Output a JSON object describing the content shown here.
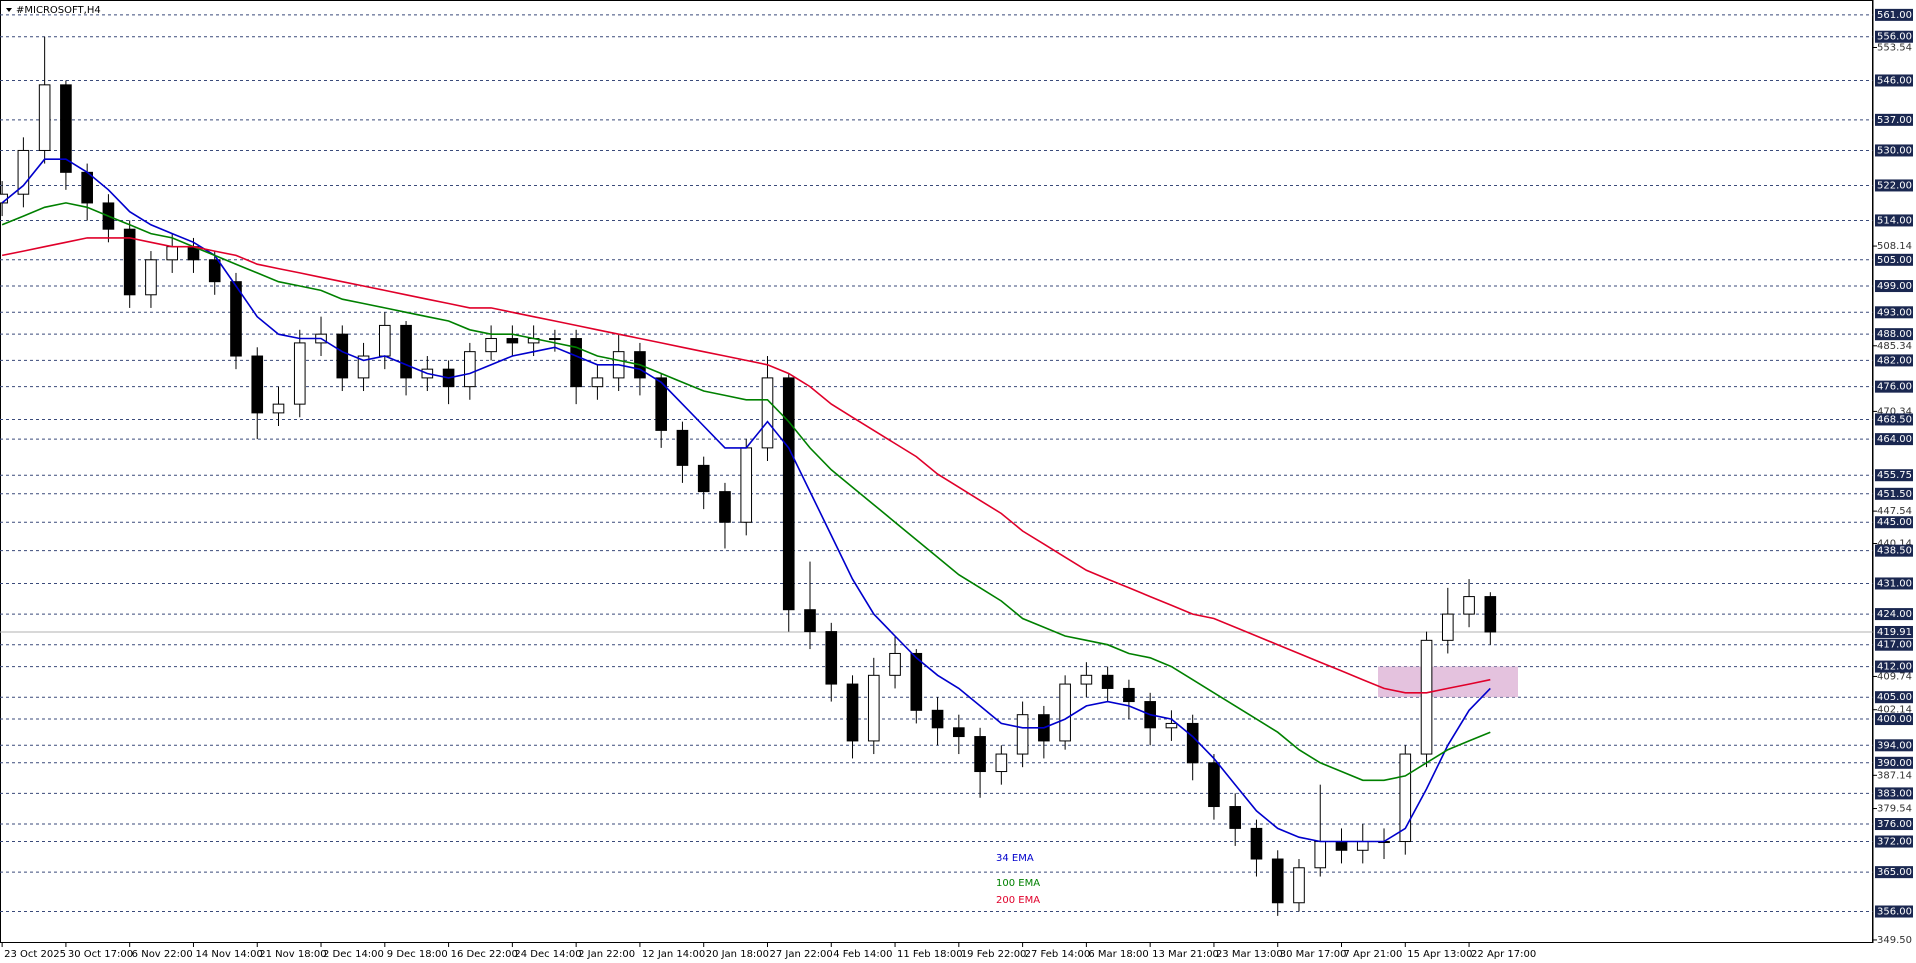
{
  "chart_data": {
    "type": "candlestick",
    "title": "#MICROSOFT,H4",
    "categories": [
      "23 Oct 2025",
      null,
      null,
      "30 Oct 17:00",
      null,
      null,
      "6 Nov 22:00",
      null,
      null,
      "14 Nov 14:00",
      null,
      null,
      "21 Nov 18:00",
      null,
      null,
      "2 Dec 14:00",
      null,
      null,
      "9 Dec 18:00",
      null,
      null,
      "16 Dec 22:00",
      null,
      null,
      "24 Dec 14:00",
      null,
      null,
      "2 Jan 22:00",
      null,
      null,
      "12 Jan 14:00",
      null,
      null,
      "20 Jan 18:00",
      null,
      null,
      "27 Jan 22:00",
      null,
      null,
      "4 Feb 14:00",
      null,
      null,
      "11 Feb 18:00",
      null,
      null,
      "19 Feb 22:00",
      null,
      null,
      "27 Feb 14:00",
      null,
      null,
      "6 Mar 18:00",
      null,
      null,
      "13 Mar 21:00",
      null,
      null,
      "23 Mar 13:00",
      null,
      null,
      "30 Mar 17:00",
      null,
      null,
      "7 Apr 21:00",
      null,
      null,
      "15 Apr 13:00",
      null,
      null,
      "22 Apr 17:00",
      null
    ],
    "open": [
      518,
      520,
      530,
      545,
      525,
      518,
      512,
      497,
      505,
      508,
      505,
      500,
      483,
      470,
      472,
      486,
      488,
      478,
      483,
      490,
      478,
      480,
      476,
      484,
      487,
      486,
      487,
      487,
      476,
      478,
      484,
      478,
      466,
      458,
      452,
      445,
      462,
      478,
      425,
      420,
      408,
      395,
      410,
      415,
      402,
      398,
      396,
      388,
      392,
      401,
      395,
      408,
      410,
      407,
      404,
      398,
      399,
      390,
      380,
      375,
      368,
      358,
      366,
      372,
      370,
      372,
      372,
      392,
      418,
      424,
      428
    ],
    "high": [
      523,
      533,
      556,
      546,
      527,
      520,
      514,
      507,
      511,
      510,
      507,
      502,
      485,
      476,
      489,
      492,
      490,
      486,
      493,
      491,
      483,
      482,
      486,
      490,
      490,
      490,
      489,
      489,
      481,
      488,
      486,
      479,
      468,
      460,
      454,
      464,
      483,
      479,
      436,
      422,
      410,
      414,
      419,
      416,
      405,
      401,
      398,
      394,
      404,
      403,
      410,
      413,
      412,
      409,
      406,
      402,
      401,
      392,
      383,
      377,
      370,
      368,
      385,
      375,
      376,
      375,
      394,
      420,
      430,
      432,
      429
    ],
    "low": [
      515,
      517,
      527,
      521,
      514,
      509,
      494,
      494,
      502,
      502,
      497,
      480,
      464,
      467,
      469,
      483,
      475,
      475,
      480,
      474,
      475,
      472,
      473,
      482,
      483,
      483,
      484,
      472,
      473,
      475,
      474,
      462,
      454,
      448,
      439,
      442,
      459,
      420,
      416,
      404,
      391,
      392,
      407,
      399,
      394,
      392,
      382,
      385,
      389,
      391,
      393,
      405,
      404,
      400,
      394,
      395,
      386,
      377,
      371,
      364,
      355,
      356,
      364,
      367,
      367,
      368,
      369,
      389,
      415,
      421,
      417
    ],
    "close": [
      520,
      530,
      545,
      525,
      518,
      512,
      497,
      505,
      508,
      505,
      500,
      483,
      470,
      472,
      486,
      488,
      478,
      483,
      490,
      478,
      480,
      476,
      484,
      487,
      486,
      487,
      487,
      476,
      478,
      484,
      478,
      466,
      458,
      452,
      445,
      462,
      478,
      425,
      420,
      408,
      395,
      410,
      415,
      402,
      398,
      396,
      388,
      392,
      401,
      395,
      408,
      410,
      407,
      404,
      398,
      399,
      390,
      380,
      375,
      368,
      358,
      366,
      372,
      370,
      372,
      372,
      392,
      418,
      424,
      428,
      419.91
    ],
    "up_color": "#ffffff",
    "down_color": "#000000",
    "candle_outline": "#000000",
    "series": [
      {
        "name": "34 EMA",
        "color": "#0000cc",
        "values": [
          518,
          522,
          528,
          528,
          525,
          521,
          516,
          513,
          511,
          509,
          506,
          499,
          492,
          488,
          487,
          487,
          484,
          482,
          483,
          481,
          479,
          478,
          479,
          481,
          483,
          484,
          485,
          483,
          481,
          481,
          480,
          477,
          472,
          467,
          462,
          462,
          468,
          462,
          452,
          442,
          432,
          424,
          419,
          414,
          410,
          407,
          403,
          399,
          398,
          398,
          400,
          403,
          404,
          403,
          401,
          400,
          396,
          391,
          385,
          379,
          375,
          373,
          372,
          372,
          372,
          372,
          375,
          384,
          394,
          402,
          407
        ]
      },
      {
        "name": "100 EMA",
        "color": "#008000",
        "values": [
          513,
          515,
          517,
          518,
          517,
          515,
          513,
          511,
          510,
          508,
          506,
          504,
          502,
          500,
          499,
          498,
          496,
          495,
          494,
          493,
          492,
          491,
          489,
          488,
          488,
          487,
          486,
          485,
          483,
          482,
          481,
          479,
          477,
          475,
          474,
          473,
          473,
          468,
          462,
          457,
          453,
          449,
          445,
          441,
          437,
          433,
          430,
          427,
          423,
          421,
          419,
          418,
          417,
          415,
          414,
          412,
          409,
          406,
          403,
          400,
          397,
          393,
          390,
          388,
          386,
          386,
          387,
          390,
          393,
          395,
          397
        ]
      },
      {
        "name": "200 EMA",
        "color": "#e0002a",
        "values": [
          506,
          507,
          508,
          509,
          510,
          510,
          510,
          509,
          508,
          508,
          507,
          506,
          504,
          503,
          502,
          501,
          500,
          499,
          498,
          497,
          496,
          495,
          494,
          494,
          493,
          492,
          491,
          490,
          489,
          488,
          487,
          486,
          485,
          484,
          483,
          482,
          481,
          479,
          476,
          472,
          469,
          466,
          463,
          460,
          456,
          453,
          450,
          447,
          443,
          440,
          437,
          434,
          432,
          430,
          428,
          426,
          424,
          423,
          421,
          419,
          417,
          415,
          413,
          411,
          409,
          407,
          406,
          406,
          407,
          408,
          409
        ]
      }
    ],
    "xlim": [
      -0.1,
      88
    ],
    "ylim": [
      348.8,
      564.4
    ],
    "levels": [
      {
        "value": 561,
        "label": "561.00"
      },
      {
        "value": 556,
        "label": "556.00"
      },
      {
        "value": 546,
        "label": "546.00"
      },
      {
        "value": 537,
        "label": "537.00"
      },
      {
        "value": 530,
        "label": "530.00"
      },
      {
        "value": 522,
        "label": "522.00"
      },
      {
        "value": 514,
        "label": "514.00"
      },
      {
        "value": 505,
        "label": "505.00"
      },
      {
        "value": 499,
        "label": "499.00"
      },
      {
        "value": 493,
        "label": "493.00"
      },
      {
        "value": 488,
        "label": "488.00"
      },
      {
        "value": 482,
        "label": "482.00"
      },
      {
        "value": 476,
        "label": "476.00"
      },
      {
        "value": 468.5,
        "label": "468.50"
      },
      {
        "value": 464,
        "label": "464.00"
      },
      {
        "value": 455.75,
        "label": "455.75"
      },
      {
        "value": 451.5,
        "label": "451.50"
      },
      {
        "value": 445,
        "label": "445.00"
      },
      {
        "value": 438.5,
        "label": "438.50"
      },
      {
        "value": 431,
        "label": "431.00"
      },
      {
        "value": 424,
        "label": "424.00"
      },
      {
        "value": 417,
        "label": "417.00"
      },
      {
        "value": 412,
        "label": "412.00"
      },
      {
        "value": 405,
        "label": "405.00"
      },
      {
        "value": 400,
        "label": "400.00"
      },
      {
        "value": 394,
        "label": "394.00"
      },
      {
        "value": 390,
        "label": "390.00"
      },
      {
        "value": 383,
        "label": "383.00"
      },
      {
        "value": 376,
        "label": "376.00"
      },
      {
        "value": 372,
        "label": "372.00"
      },
      {
        "value": 365,
        "label": "365.00"
      },
      {
        "value": 356,
        "label": "356.00"
      }
    ],
    "yticks": [
      {
        "value": 553.54,
        "label": "553.54"
      },
      {
        "value": 508.14,
        "label": "508.14"
      },
      {
        "value": 485.34,
        "label": "485.34"
      },
      {
        "value": 470.34,
        "label": "470.34"
      },
      {
        "value": 447.54,
        "label": "447.54"
      },
      {
        "value": 440.14,
        "label": "440.14"
      },
      {
        "value": 409.74,
        "label": "409.74"
      },
      {
        "value": 402.14,
        "label": "402.14"
      },
      {
        "value": 387.14,
        "label": "387.14"
      },
      {
        "value": 379.54,
        "label": "379.54"
      },
      {
        "value": 349.5,
        "label": "349.50"
      }
    ],
    "current_price": {
      "value": 419.91,
      "label": "419.91"
    },
    "zone": {
      "from": 412,
      "to": 405,
      "color": "#d8a8d0"
    }
  }
}
